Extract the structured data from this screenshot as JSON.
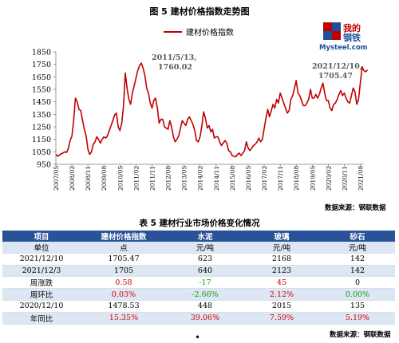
{
  "figure": {
    "title": "图 5  建材价格指数走势图",
    "source": "数据来源：钢联数据"
  },
  "logo": {
    "text_cn_1": "我的",
    "text_cn_2": "钢铁",
    "text_en": "Mysteel.com"
  },
  "chart_data": {
    "type": "line",
    "series": [
      {
        "name": "建材价格指数",
        "color": "#c00000",
        "points": [
          [
            "2007-05",
            1030
          ],
          [
            "2007-06",
            1015
          ],
          [
            "2007-07",
            1025
          ],
          [
            "2007-08",
            1035
          ],
          [
            "2007-09",
            1040
          ],
          [
            "2007-10",
            1050
          ],
          [
            "2007-11",
            1045
          ],
          [
            "2007-12",
            1075
          ],
          [
            "2008-01",
            1140
          ],
          [
            "2008-02",
            1175
          ],
          [
            "2008-03",
            1300
          ],
          [
            "2008-04",
            1480
          ],
          [
            "2008-05",
            1450
          ],
          [
            "2008-06",
            1390
          ],
          [
            "2008-07",
            1380
          ],
          [
            "2008-08",
            1300
          ],
          [
            "2008-09",
            1230
          ],
          [
            "2008-10",
            1180
          ],
          [
            "2008-11",
            1070
          ],
          [
            "2008-12",
            1030
          ],
          [
            "2009-01",
            1050
          ],
          [
            "2009-02",
            1110
          ],
          [
            "2009-03",
            1130
          ],
          [
            "2009-04",
            1170
          ],
          [
            "2009-05",
            1150
          ],
          [
            "2009-06",
            1120
          ],
          [
            "2009-07",
            1150
          ],
          [
            "2009-08",
            1170
          ],
          [
            "2009-09",
            1160
          ],
          [
            "2009-10",
            1180
          ],
          [
            "2009-11",
            1220
          ],
          [
            "2009-12",
            1260
          ],
          [
            "2010-01",
            1300
          ],
          [
            "2010-02",
            1345
          ],
          [
            "2010-03",
            1360
          ],
          [
            "2010-04",
            1250
          ],
          [
            "2010-05",
            1220
          ],
          [
            "2010-06",
            1280
          ],
          [
            "2010-07",
            1420
          ],
          [
            "2010-08",
            1680
          ],
          [
            "2010-09",
            1560
          ],
          [
            "2010-10",
            1470
          ],
          [
            "2010-11",
            1430
          ],
          [
            "2010-12",
            1520
          ],
          [
            "2011-01",
            1580
          ],
          [
            "2011-02",
            1640
          ],
          [
            "2011-03",
            1700
          ],
          [
            "2011-04",
            1740
          ],
          [
            "2011-05",
            1760
          ],
          [
            "2011-06",
            1720
          ],
          [
            "2011-07",
            1660
          ],
          [
            "2011-08",
            1560
          ],
          [
            "2011-09",
            1520
          ],
          [
            "2011-10",
            1440
          ],
          [
            "2011-11",
            1400
          ],
          [
            "2011-12",
            1460
          ],
          [
            "2012-01",
            1480
          ],
          [
            "2012-02",
            1400
          ],
          [
            "2012-03",
            1280
          ],
          [
            "2012-04",
            1310
          ],
          [
            "2012-05",
            1310
          ],
          [
            "2012-06",
            1250
          ],
          [
            "2012-07",
            1240
          ],
          [
            "2012-08",
            1230
          ],
          [
            "2012-09",
            1300
          ],
          [
            "2012-10",
            1250
          ],
          [
            "2012-11",
            1170
          ],
          [
            "2012-12",
            1130
          ],
          [
            "2013-01",
            1150
          ],
          [
            "2013-02",
            1180
          ],
          [
            "2013-03",
            1240
          ],
          [
            "2013-04",
            1300
          ],
          [
            "2013-05",
            1280
          ],
          [
            "2013-06",
            1260
          ],
          [
            "2013-07",
            1310
          ],
          [
            "2013-08",
            1330
          ],
          [
            "2013-09",
            1300
          ],
          [
            "2013-10",
            1270
          ],
          [
            "2013-11",
            1220
          ],
          [
            "2013-12",
            1140
          ],
          [
            "2014-01",
            1130
          ],
          [
            "2014-02",
            1170
          ],
          [
            "2014-03",
            1260
          ],
          [
            "2014-04",
            1370
          ],
          [
            "2014-05",
            1320
          ],
          [
            "2014-06",
            1240
          ],
          [
            "2014-07",
            1260
          ],
          [
            "2014-08",
            1210
          ],
          [
            "2014-09",
            1230
          ],
          [
            "2014-10",
            1160
          ],
          [
            "2014-11",
            1170
          ],
          [
            "2014-12",
            1170
          ],
          [
            "2015-01",
            1130
          ],
          [
            "2015-02",
            1100
          ],
          [
            "2015-03",
            1120
          ],
          [
            "2015-04",
            1140
          ],
          [
            "2015-05",
            1120
          ],
          [
            "2015-06",
            1060
          ],
          [
            "2015-07",
            1050
          ],
          [
            "2015-08",
            1020
          ],
          [
            "2015-09",
            1015
          ],
          [
            "2015-10",
            1010
          ],
          [
            "2015-11",
            1030
          ],
          [
            "2015-12",
            1040
          ],
          [
            "2016-01",
            1020
          ],
          [
            "2016-02",
            1040
          ],
          [
            "2016-03",
            1060
          ],
          [
            "2016-04",
            1130
          ],
          [
            "2016-05",
            1080
          ],
          [
            "2016-06",
            1060
          ],
          [
            "2016-07",
            1080
          ],
          [
            "2016-08",
            1100
          ],
          [
            "2016-09",
            1110
          ],
          [
            "2016-10",
            1130
          ],
          [
            "2016-11",
            1160
          ],
          [
            "2016-12",
            1130
          ],
          [
            "2017-01",
            1150
          ],
          [
            "2017-02",
            1240
          ],
          [
            "2017-03",
            1320
          ],
          [
            "2017-04",
            1390
          ],
          [
            "2017-05",
            1330
          ],
          [
            "2017-06",
            1380
          ],
          [
            "2017-07",
            1430
          ],
          [
            "2017-08",
            1400
          ],
          [
            "2017-09",
            1470
          ],
          [
            "2017-10",
            1440
          ],
          [
            "2017-11",
            1520
          ],
          [
            "2017-12",
            1480
          ],
          [
            "2018-01",
            1440
          ],
          [
            "2018-02",
            1400
          ],
          [
            "2018-03",
            1360
          ],
          [
            "2018-04",
            1380
          ],
          [
            "2018-05",
            1470
          ],
          [
            "2018-06",
            1500
          ],
          [
            "2018-07",
            1560
          ],
          [
            "2018-08",
            1620
          ],
          [
            "2018-09",
            1520
          ],
          [
            "2018-10",
            1500
          ],
          [
            "2018-11",
            1460
          ],
          [
            "2018-12",
            1420
          ],
          [
            "2019-01",
            1420
          ],
          [
            "2019-02",
            1440
          ],
          [
            "2019-03",
            1470
          ],
          [
            "2019-04",
            1550
          ],
          [
            "2019-05",
            1480
          ],
          [
            "2019-06",
            1480
          ],
          [
            "2019-07",
            1510
          ],
          [
            "2019-08",
            1480
          ],
          [
            "2019-09",
            1510
          ],
          [
            "2019-10",
            1560
          ],
          [
            "2019-11",
            1600
          ],
          [
            "2019-12",
            1520
          ],
          [
            "2020-01",
            1460
          ],
          [
            "2020-02",
            1460
          ],
          [
            "2020-03",
            1400
          ],
          [
            "2020-04",
            1380
          ],
          [
            "2020-05",
            1430
          ],
          [
            "2020-06",
            1440
          ],
          [
            "2020-07",
            1470
          ],
          [
            "2020-08",
            1510
          ],
          [
            "2020-09",
            1540
          ],
          [
            "2020-10",
            1500
          ],
          [
            "2020-11",
            1520
          ],
          [
            "2020-12",
            1478.53
          ],
          [
            "2021-01",
            1450
          ],
          [
            "2021-02",
            1440
          ],
          [
            "2021-03",
            1500
          ],
          [
            "2021-04",
            1560
          ],
          [
            "2021-05",
            1530
          ],
          [
            "2021-06",
            1430
          ],
          [
            "2021-07",
            1470
          ],
          [
            "2021-08",
            1600
          ],
          [
            "2021-09",
            1730
          ],
          [
            "2021-10",
            1700
          ],
          [
            "2021-11",
            1690
          ],
          [
            "2021-12",
            1705.47
          ]
        ]
      }
    ],
    "xticks": [
      "2007-05",
      "2008-02",
      "2008-11",
      "2009-08",
      "2010-05",
      "2011-02",
      "2011-11",
      "2012-08",
      "2013-05",
      "2014-02",
      "2014-11",
      "2015-08",
      "2016-05",
      "2017-02",
      "2017-11",
      "2018-08",
      "2019-05",
      "2020-02",
      "2020-11",
      "2021-08"
    ],
    "xtick_labels": [
      "2007/05",
      "2008/02",
      "2008/11",
      "2009/08",
      "2010/05",
      "2011/02",
      "2011/11",
      "2012/08",
      "2013/05",
      "2014/02",
      "2014/11",
      "2015/08",
      "2016/05",
      "2017/02",
      "2017/11",
      "2018/08",
      "2019/05",
      "2020/02",
      "2020/11",
      "2021/08"
    ],
    "yticks": [
      950,
      1050,
      1150,
      1250,
      1350,
      1450,
      1550,
      1650,
      1750,
      1850
    ],
    "ylim": [
      950,
      1850
    ],
    "legend": {
      "label": "建材价格指数",
      "position": "top-center"
    },
    "annotations": [
      {
        "x": "2011-05",
        "y": 1760.02,
        "text_line1": "2011/5/13,",
        "text_line2": "1760.02"
      },
      {
        "x": "2021-12",
        "y": 1705.47,
        "text_line1": "2021/12/10,",
        "text_line2": "1705.47"
      }
    ],
    "grid": false
  },
  "table": {
    "title": "表 5  建材行业市场价格变化情况",
    "headers": [
      "项目",
      "建材价格指数",
      "水泥",
      "玻璃",
      "砂石"
    ],
    "rows": [
      [
        "单位",
        "点",
        "元/吨",
        "元/吨",
        "元/吨"
      ],
      [
        "2021/12/10",
        "1705.47",
        "623",
        "2168",
        "142"
      ],
      [
        "2021/12/3",
        "1705",
        "640",
        "2123",
        "142"
      ],
      [
        "周涨跌",
        "0.58",
        "-17",
        "45",
        "0"
      ],
      [
        "周环比",
        "0.03%",
        "-2.66%",
        "2.12%",
        "0.00%"
      ],
      [
        "2020/12/10",
        "1478.53",
        "448",
        "2015",
        "135"
      ],
      [
        "年同比",
        "15.35%",
        "39.06%",
        "7.59%",
        "5.19%"
      ]
    ],
    "cell_colors": [
      [
        "",
        "",
        "",
        "",
        ""
      ],
      [
        "",
        "",
        "",
        "",
        ""
      ],
      [
        "",
        "",
        "",
        "",
        ""
      ],
      [
        "",
        "red",
        "grn",
        "red",
        ""
      ],
      [
        "",
        "red",
        "grn",
        "red",
        "grn"
      ],
      [
        "",
        "",
        "",
        "",
        ""
      ],
      [
        "",
        "red",
        "red",
        "red",
        "red"
      ]
    ],
    "source": "数据来源：钢联数据"
  },
  "footer": {
    "bullet": "•"
  }
}
